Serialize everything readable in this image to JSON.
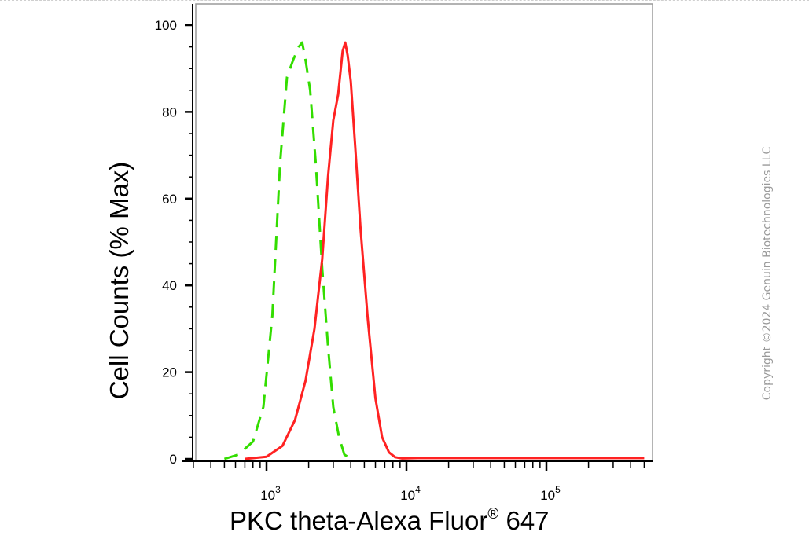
{
  "chart_data": {
    "type": "line",
    "title": "",
    "xlabel": {
      "main": "PKC theta-Alexa Fluor",
      "sup": "®",
      "tail": " 647"
    },
    "ylabel": "Cell Counts (% Max)",
    "x_scale": "log",
    "xlim": [
      300,
      500000
    ],
    "ylim": [
      0,
      105
    ],
    "y_ticks": [
      0,
      20,
      40,
      60,
      80,
      100
    ],
    "x_major_ticks": [
      {
        "value": 1000,
        "label_base": "10",
        "label_exp": "3"
      },
      {
        "value": 10000,
        "label_base": "10",
        "label_exp": "4"
      },
      {
        "value": 100000,
        "label_base": "10",
        "label_exp": "5"
      }
    ],
    "grid": false,
    "legend": "none",
    "series": [
      {
        "color": "#33dd00",
        "dash": "dashed",
        "x": [
          500,
          630,
          800,
          950,
          1100,
          1250,
          1400,
          1550,
          1700,
          1800,
          1900,
          2050,
          2250,
          2500,
          2750,
          3000,
          3300,
          3600,
          4000
        ],
        "y": [
          0,
          1,
          4,
          12,
          33,
          68,
          88,
          92,
          95,
          96,
          92,
          85,
          68,
          44,
          26,
          12,
          5,
          1,
          0
        ]
      },
      {
        "color": "#ff2222",
        "dash": "solid",
        "x": [
          700,
          1000,
          1300,
          1600,
          1900,
          2200,
          2500,
          2750,
          3000,
          3250,
          3500,
          3650,
          3800,
          4000,
          4300,
          4700,
          5300,
          6000,
          6700,
          7500,
          8300,
          9300,
          12000,
          50000,
          500000
        ],
        "y": [
          0,
          0.5,
          3,
          9,
          18,
          30,
          46,
          65,
          78,
          84,
          94,
          96,
          93,
          87,
          72,
          53,
          32,
          14,
          5,
          1.5,
          0.4,
          0.1,
          0.2,
          0.2,
          0.2
        ]
      }
    ]
  },
  "copyright": "Copyright ©2024 Genuin Biotechnologies LLC"
}
